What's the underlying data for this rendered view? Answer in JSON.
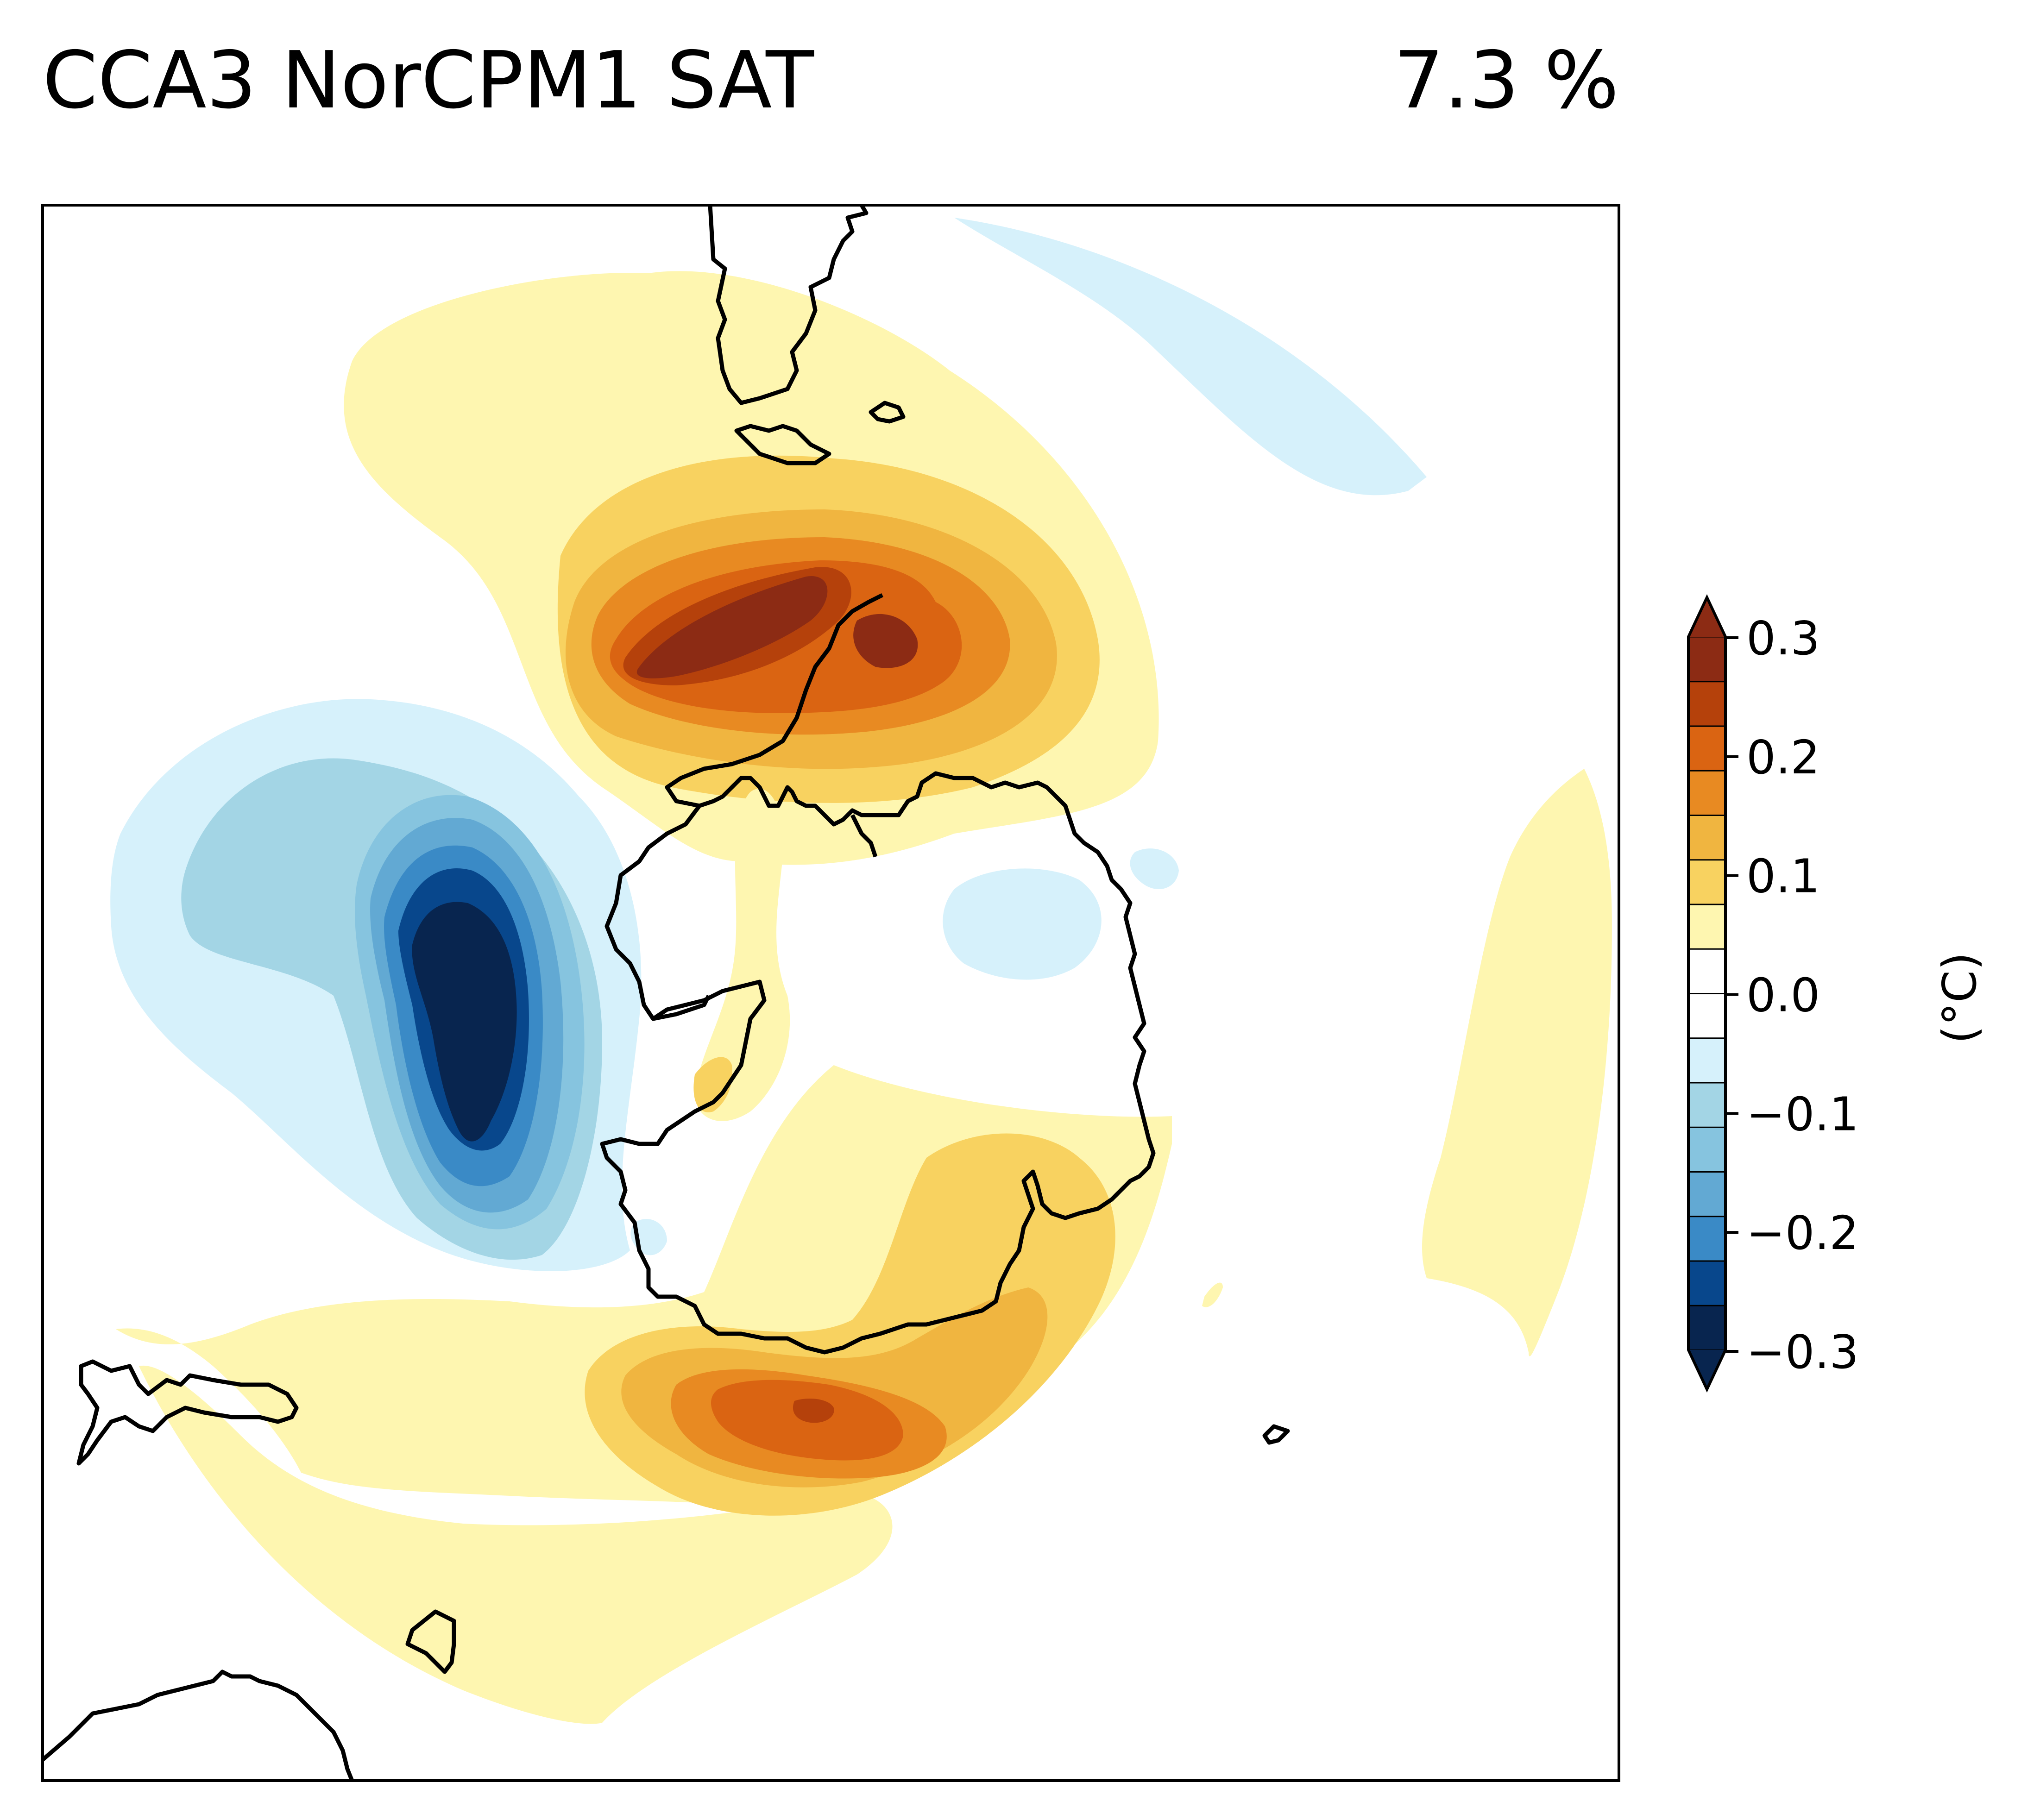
{
  "map": {
    "title": "CCA3 NorCPM1 SAT",
    "variance": "7.3 %",
    "projection": "south-polar-stereographic",
    "variable": "SAT",
    "coastline_color": "#000000"
  },
  "colorbar": {
    "label": "(°C)",
    "ticks": [
      "0.3",
      "0.2",
      "0.1",
      "0.0",
      "−0.1",
      "−0.2",
      "−0.3"
    ],
    "range": [
      -0.3,
      0.3
    ],
    "extend": "both",
    "levels": [
      {
        "color": "#08254f"
      },
      {
        "color": "#08478c"
      },
      {
        "color": "#3a8ac6"
      },
      {
        "color": "#62a9d3"
      },
      {
        "color": "#86c4df"
      },
      {
        "color": "#a3d5e5"
      },
      {
        "color": "#d6f1fb"
      },
      {
        "color": "#ffffff"
      },
      {
        "color": "#ffffff"
      },
      {
        "color": "#fef6b0"
      },
      {
        "color": "#f8d260"
      },
      {
        "color": "#f0b540"
      },
      {
        "color": "#e88a22"
      },
      {
        "color": "#da6412"
      },
      {
        "color": "#b5410b"
      },
      {
        "color": "#8c2b14"
      }
    ],
    "under_color": "#08254f",
    "over_color": "#8c2b14"
  }
}
